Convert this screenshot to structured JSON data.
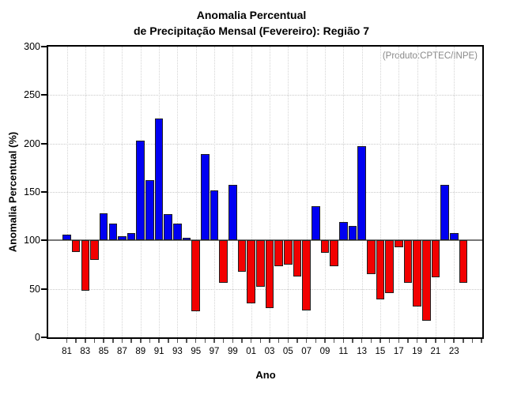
{
  "title": {
    "line1": "Anomalia Percentual",
    "line2": "de Precipitação Mensal (Fevereiro): Região 7"
  },
  "annotation": "(Produto:CPTEC/INPE)",
  "axes": {
    "y_label": "Anomalia Percentual (%)",
    "x_label": "Ano"
  },
  "chart_data": {
    "type": "bar",
    "title": "Anomalia Percentual de Precipitação Mensal (Fevereiro): Região 7",
    "xlabel": "Ano",
    "ylabel": "Anomalia Percentual (%)",
    "ylim": [
      0,
      300
    ],
    "y_ticks": [
      0,
      50,
      100,
      150,
      200,
      250,
      300
    ],
    "baseline": 100,
    "grid": true,
    "x_tick_labels": [
      "81",
      "83",
      "85",
      "87",
      "89",
      "91",
      "93",
      "95",
      "97",
      "99",
      "01",
      "03",
      "05",
      "07",
      "09",
      "11",
      "13",
      "15",
      "17",
      "19",
      "21",
      "23"
    ],
    "years": [
      1981,
      1982,
      1983,
      1984,
      1985,
      1986,
      1987,
      1988,
      1989,
      1990,
      1991,
      1992,
      1993,
      1994,
      1995,
      1996,
      1997,
      1998,
      1999,
      2000,
      2001,
      2002,
      2003,
      2004,
      2005,
      2006,
      2007,
      2008,
      2009,
      2010,
      2011,
      2012,
      2013,
      2014,
      2015,
      2016,
      2017,
      2018,
      2019,
      2020,
      2021,
      2022,
      2023,
      2024
    ],
    "values": [
      106,
      88,
      48,
      80,
      128,
      117,
      104,
      108,
      203,
      162,
      226,
      127,
      117,
      103,
      27,
      189,
      152,
      56,
      157,
      68,
      35,
      52,
      30,
      73,
      75,
      63,
      28,
      135,
      87,
      73,
      119,
      115,
      197,
      65,
      39,
      46,
      93,
      56,
      32,
      17,
      62,
      157,
      108,
      56
    ],
    "colors": {
      "above_baseline": "#0000f2",
      "below_baseline": "#f20000",
      "bar_outline": "#1f1f1f",
      "baseline_line": "#777777",
      "gridline": "#c9c9c9",
      "annotation_text": "#898989"
    }
  }
}
